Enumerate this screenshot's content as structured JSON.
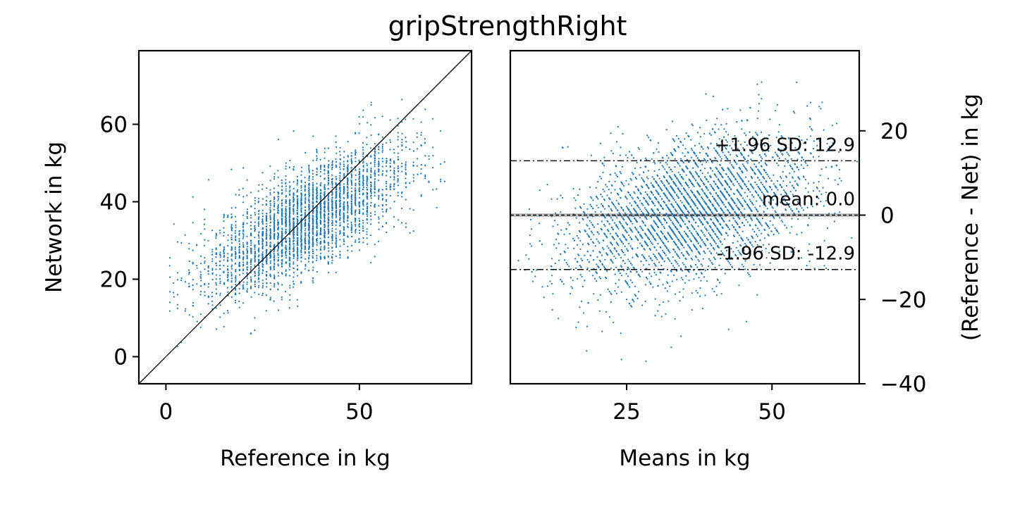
{
  "chart_data": [
    {
      "type": "scatter",
      "title": "gripStrengthRight",
      "xlabel": "Reference in kg",
      "ylabel": "Network in kg",
      "xlim": [
        -7,
        79
      ],
      "ylim": [
        -7,
        79
      ],
      "xticks": [
        "0",
        "50"
      ],
      "yticks": [
        "0",
        "20",
        "40",
        "60"
      ],
      "xtick_values": [
        0,
        50
      ],
      "ytick_values": [
        0,
        20,
        40,
        60
      ],
      "identity_line": true,
      "point_color": "#1f77b4",
      "summary": {
        "x_range": [
          0,
          72
        ],
        "approx_relationship": "network ≈ 17 + 0.5 × reference",
        "residual_sd": 6.5
      }
    },
    {
      "type": "scatter",
      "xlabel": "Means in kg",
      "ylabel": "(Reference - Net) in kg",
      "xlim": [
        5,
        65
      ],
      "ylim": [
        -40,
        39
      ],
      "xticks": [
        "25",
        "50"
      ],
      "yticks": [
        "20",
        "0",
        "−20",
        "−40"
      ],
      "xtick_values": [
        25,
        50
      ],
      "ytick_values": [
        20,
        0,
        -20,
        -40
      ],
      "y_axis_side": "right",
      "point_color": "#1f77b4",
      "reference_lines": [
        {
          "name": "upper-limit",
          "y": 12.9,
          "style": "dashdot",
          "label": "+1.96 SD: 12.9"
        },
        {
          "name": "mean",
          "y": 0.0,
          "style": "dashed",
          "label": "mean: 0.0"
        },
        {
          "name": "lower-limit",
          "y": -12.9,
          "style": "dashdot",
          "label": "-1.96 SD: -12.9"
        }
      ],
      "mean_band": {
        "y_low": -0.4,
        "y_high": 0.4,
        "color": "#bdbdbd"
      }
    }
  ]
}
